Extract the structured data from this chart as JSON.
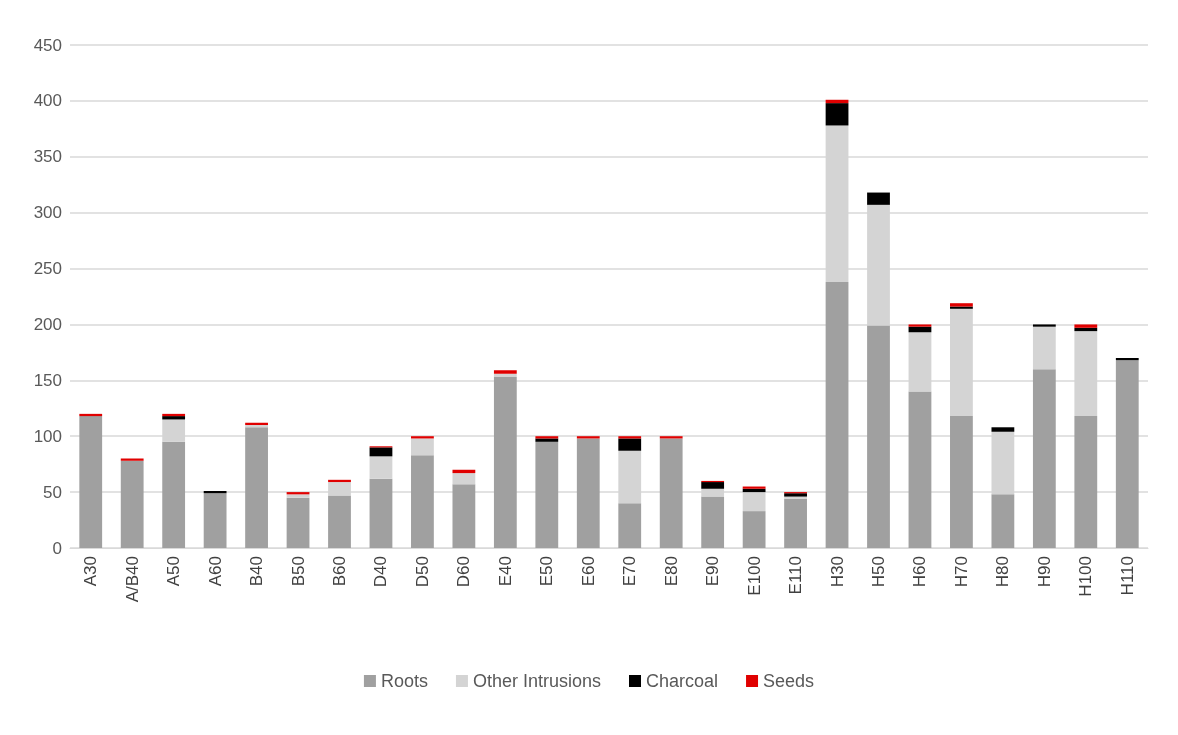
{
  "chart_data": {
    "type": "bar",
    "stacked": true,
    "categories": [
      "A30",
      "A/B40",
      "A50",
      "A60",
      "B40",
      "B50",
      "B60",
      "D40",
      "D50",
      "D60",
      "E40",
      "E50",
      "E60",
      "E70",
      "E80",
      "E90",
      "E100",
      "E110",
      "H30",
      "H50",
      "H60",
      "H70",
      "H80",
      "H90",
      "H100",
      "H110"
    ],
    "series": [
      {
        "name": "Roots",
        "color": "#a0a0a0",
        "values": [
          118,
          78,
          95,
          49,
          108,
          45,
          47,
          62,
          83,
          57,
          153,
          95,
          98,
          40,
          98,
          46,
          33,
          44,
          238,
          199,
          140,
          118,
          48,
          160,
          118,
          168
        ]
      },
      {
        "name": "Other Intrusions",
        "color": "#d4d4d4",
        "values": [
          0,
          0,
          20,
          0,
          2,
          3,
          12,
          20,
          15,
          10,
          3,
          0,
          0,
          47,
          0,
          7,
          17,
          2,
          140,
          108,
          53,
          96,
          56,
          38,
          76,
          0
        ]
      },
      {
        "name": "Charcoal",
        "color": "#000000",
        "values": [
          0,
          0,
          3,
          2,
          0,
          0,
          0,
          8,
          0,
          0,
          0,
          3,
          0,
          11,
          0,
          6,
          3,
          3,
          20,
          11,
          5,
          2,
          4,
          2,
          3,
          2
        ]
      },
      {
        "name": "Seeds",
        "color": "#e00000",
        "values": [
          2,
          2,
          2,
          0,
          2,
          2,
          2,
          1,
          2,
          3,
          3,
          2,
          2,
          2,
          2,
          1,
          2,
          1,
          3,
          0,
          2,
          3,
          0,
          0,
          3,
          0
        ]
      }
    ],
    "ylim": [
      0,
      450
    ],
    "yticks": [
      0,
      50,
      100,
      150,
      200,
      250,
      300,
      350,
      400,
      450
    ],
    "grid": "y",
    "legend": "bottom"
  }
}
